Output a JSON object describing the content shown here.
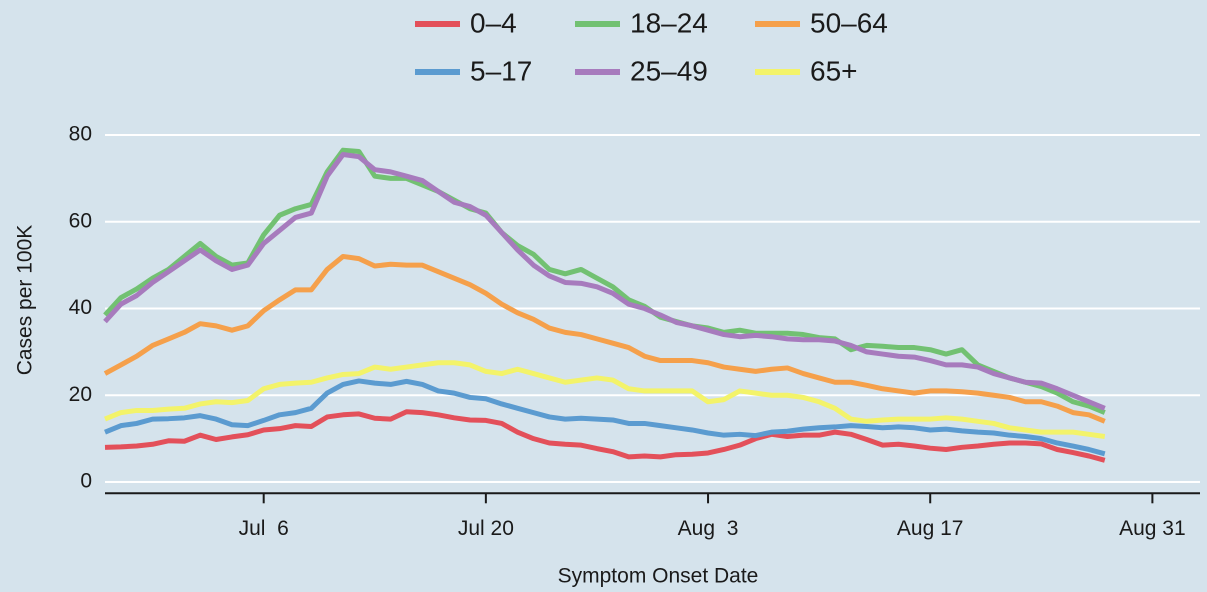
{
  "chart_data": {
    "type": "line",
    "x_label": "Symptom Onset Date",
    "y_label": "Cases per 100K",
    "x": [
      "Jun 26",
      "Jun 27",
      "Jun 28",
      "Jun 29",
      "Jun 30",
      "Jul 1",
      "Jul 2",
      "Jul 3",
      "Jul 4",
      "Jul 5",
      "Jul 6",
      "Jul 7",
      "Jul 8",
      "Jul 9",
      "Jul 10",
      "Jul 11",
      "Jul 12",
      "Jul 13",
      "Jul 14",
      "Jul 15",
      "Jul 16",
      "Jul 17",
      "Jul 18",
      "Jul 19",
      "Jul 20",
      "Jul 21",
      "Jul 22",
      "Jul 23",
      "Jul 24",
      "Jul 25",
      "Jul 26",
      "Jul 27",
      "Jul 28",
      "Jul 29",
      "Jul 30",
      "Jul 31",
      "Aug 1",
      "Aug 2",
      "Aug 3",
      "Aug 4",
      "Aug 5",
      "Aug 6",
      "Aug 7",
      "Aug 8",
      "Aug 9",
      "Aug 10",
      "Aug 11",
      "Aug 12",
      "Aug 13",
      "Aug 14",
      "Aug 15",
      "Aug 16",
      "Aug 17",
      "Aug 18",
      "Aug 19",
      "Aug 20",
      "Aug 21",
      "Aug 22",
      "Aug 23",
      "Aug 24",
      "Aug 25",
      "Aug 26",
      "Aug 27",
      "Aug 28"
    ],
    "xlim": [
      "Jun 26",
      "Sep 3"
    ],
    "xticks": [
      {
        "value": "Jul 6",
        "label": "Jul  6"
      },
      "Jul 20",
      {
        "value": "Aug 3",
        "label": "Aug  3"
      },
      "Aug 17",
      "Aug 31"
    ],
    "ylim": [
      -2.6,
      88
    ],
    "yticks": [
      0,
      20,
      40,
      60,
      80
    ],
    "grid": true,
    "legend_position": "top",
    "series": [
      {
        "name": "0–4",
        "color": "#e3505a",
        "values": [
          8,
          8.1,
          8.3,
          8.7,
          9.5,
          9.4,
          10.8,
          9.8,
          10.4,
          10.9,
          12,
          12.3,
          13,
          12.8,
          15,
          15.5,
          15.7,
          14.7,
          14.5,
          16.2,
          16,
          15.5,
          14.8,
          14.3,
          14.2,
          13.5,
          11.5,
          10,
          9,
          8.7,
          8.5,
          7.7,
          7,
          5.8,
          6,
          5.8,
          6.3,
          6.4,
          6.7,
          7.5,
          8.5,
          10,
          11,
          10.5,
          10.8,
          10.8,
          11.5,
          11,
          9.8,
          8.5,
          8.7,
          8.3,
          7.8,
          7.5,
          8,
          8.3,
          8.7,
          9,
          9,
          8.8,
          7.5,
          6.8,
          6,
          5
        ]
      },
      {
        "name": "5–17",
        "color": "#5b9bd0",
        "values": [
          11.5,
          13,
          13.5,
          14.5,
          14.6,
          14.8,
          15.3,
          14.5,
          13.2,
          13,
          14.2,
          15.5,
          16,
          17,
          20.5,
          22.5,
          23.3,
          22.8,
          22.5,
          23.2,
          22.5,
          21,
          20.5,
          19.5,
          19.2,
          18,
          17,
          16,
          15,
          14.5,
          14.7,
          14.5,
          14.3,
          13.5,
          13.5,
          13,
          12.5,
          12,
          11.3,
          10.8,
          11,
          10.7,
          11.5,
          11.7,
          12.2,
          12.5,
          12.7,
          13,
          12.8,
          12.5,
          12.7,
          12.5,
          12,
          12.2,
          11.8,
          11.5,
          11.3,
          10.8,
          10.5,
          10,
          9,
          8.3,
          7.5,
          6.5
        ]
      },
      {
        "name": "18–24",
        "color": "#72c172",
        "values": [
          38.5,
          42.5,
          44.5,
          47,
          49,
          52,
          55,
          52,
          50,
          50.5,
          57,
          61.5,
          63,
          64,
          71.5,
          76.5,
          76.2,
          70.5,
          70,
          70,
          68.5,
          67,
          65,
          63,
          62,
          57.5,
          54.5,
          52.5,
          49,
          48,
          49,
          47,
          45,
          42,
          40.5,
          38,
          37,
          36,
          35.5,
          34.5,
          35,
          34.3,
          34.3,
          34.3,
          34,
          33.3,
          33,
          30.5,
          31.5,
          31.3,
          31,
          31,
          30.5,
          29.5,
          30.5,
          27,
          25.5,
          24,
          23,
          22,
          20.5,
          18.5,
          17.5,
          16
        ]
      },
      {
        "name": "25–49",
        "color": "#a77bbd",
        "values": [
          37,
          41,
          43,
          46,
          48.5,
          51,
          53.5,
          51,
          49,
          50,
          55,
          58,
          61,
          62,
          70.5,
          75.5,
          75,
          72,
          71.5,
          70.5,
          69.5,
          67,
          64.5,
          63.5,
          61.5,
          57.5,
          53.5,
          50,
          47.5,
          46,
          45.8,
          45,
          43.5,
          41,
          40,
          38.5,
          36.8,
          36,
          35,
          34,
          33.5,
          33.8,
          33.5,
          33,
          32.8,
          32.8,
          32.5,
          31.5,
          30,
          29.5,
          29,
          28.8,
          28,
          27,
          27,
          26.5,
          25,
          24,
          23,
          22.8,
          21.5,
          20,
          18.5,
          17
        ]
      },
      {
        "name": "50–64",
        "color": "#f5a04b",
        "values": [
          25,
          27,
          29,
          31.5,
          33,
          34.5,
          36.5,
          36,
          35,
          36,
          39.5,
          42,
          44.3,
          44.3,
          49,
          52,
          51.5,
          49.8,
          50.2,
          50,
          50,
          48.5,
          47,
          45.5,
          43.5,
          41,
          39,
          37.5,
          35.5,
          34.5,
          34,
          33,
          32,
          31,
          29,
          28,
          28,
          28,
          27.5,
          26.5,
          26,
          25.5,
          26,
          26.3,
          25,
          24,
          23,
          23,
          22.3,
          21.5,
          21,
          20.5,
          21,
          21,
          20.8,
          20.5,
          20,
          19.5,
          18.5,
          18.5,
          17.5,
          16,
          15.5,
          14
        ]
      },
      {
        "name": "65+",
        "color": "#f3f36a",
        "values": [
          14.5,
          16,
          16.5,
          16.5,
          16.8,
          17,
          18,
          18.5,
          18.3,
          18.8,
          21.5,
          22.5,
          22.8,
          23,
          24,
          24.8,
          25,
          26.5,
          26,
          26.5,
          27,
          27.5,
          27.5,
          27,
          25.5,
          25,
          26,
          25,
          24,
          23,
          23.5,
          24,
          23.5,
          21.5,
          21,
          21,
          21,
          21,
          18.5,
          19,
          21,
          20.5,
          20,
          20,
          19.5,
          18.5,
          17,
          14.5,
          14,
          14.3,
          14.5,
          14.5,
          14.5,
          14.8,
          14.5,
          14,
          13.5,
          12.5,
          12,
          11.5,
          11.5,
          11.5,
          11,
          10.5
        ]
      }
    ]
  }
}
